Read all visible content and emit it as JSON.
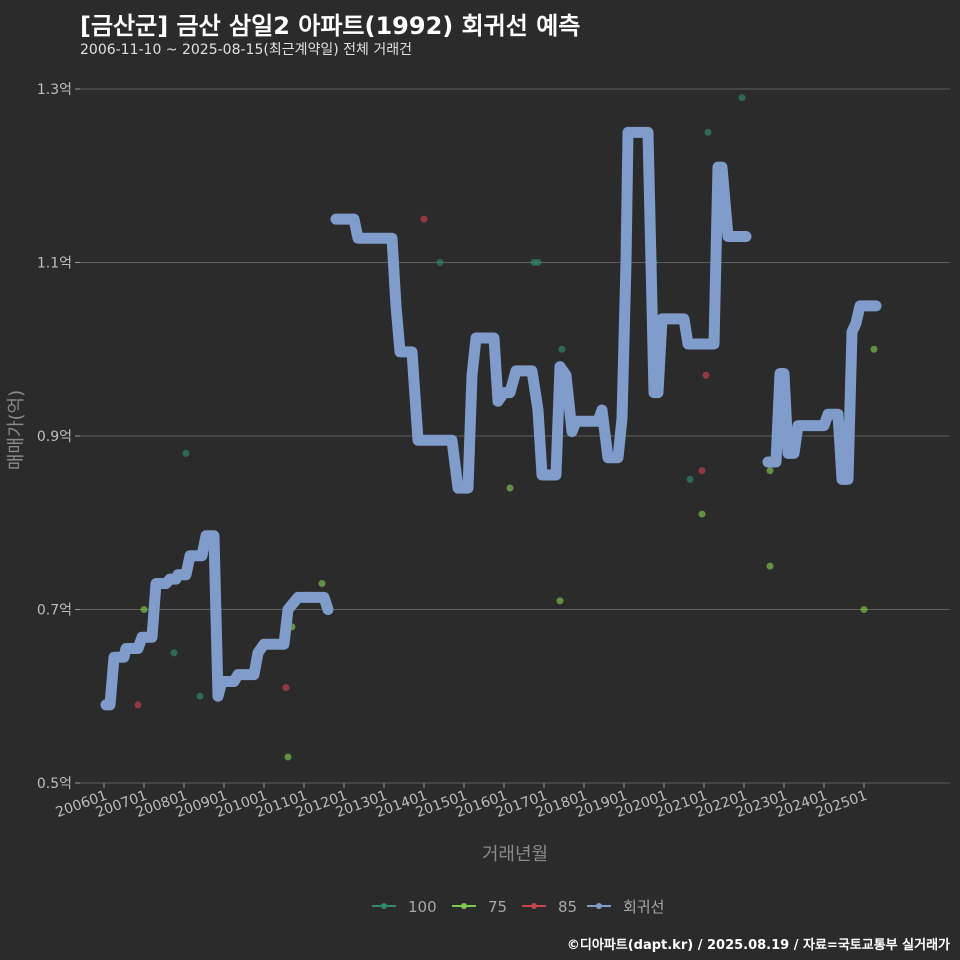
{
  "title": "[금산군] 금산 삼일2 아파트(1992) 회귀선 예측",
  "subtitle": "2006-11-10 ~ 2025-08-15(최근계약일) 전체 거래건",
  "caption": "©디아파트(dapt.kr) / 2025.08.19 / 자료=국토교통부 실거래가",
  "colors": {
    "background": "#2b2b2c",
    "grid": "#5e5e5e",
    "regression": "#7f9ccb",
    "s100": "#2f8a6e",
    "s75": "#7ec850",
    "s85": "#c8434d"
  },
  "chart_data": {
    "type": "scatter",
    "title": "[금산군] 금산 삼일2 아파트(1992) 회귀선 예측",
    "xlabel": "거래년월",
    "ylabel": "매매가(억)",
    "ylim": [
      0.5,
      1.3
    ],
    "xlim": [
      2005.4,
      2027.15
    ],
    "grid": true,
    "legend_position": "bottom",
    "y_ticks": [
      0.5,
      0.7,
      0.9,
      1.1,
      1.3
    ],
    "y_tick_labels": [
      "0.5억",
      "0.7억",
      "0.9억",
      "1.1억",
      "1.3억"
    ],
    "x_ticks": [
      2006,
      2007,
      2008,
      2009,
      2010,
      2011,
      2012,
      2013,
      2014,
      2015,
      2016,
      2017,
      2018,
      2019,
      2020,
      2021,
      2022,
      2023,
      2024,
      2025
    ],
    "x_tick_labels": [
      "200601",
      "200701",
      "200801",
      "200901",
      "201001",
      "201101",
      "201201",
      "201301",
      "201401",
      "201501",
      "201601",
      "201701",
      "201801",
      "201901",
      "202001",
      "202101",
      "202201",
      "202301",
      "202401",
      "202501"
    ],
    "legend": [
      "100",
      "75",
      "85",
      "회귀선"
    ],
    "series": [
      {
        "name": "100",
        "points": [
          [
            2008.05,
            0.88
          ],
          [
            2008.4,
            0.6
          ],
          [
            2007.75,
            0.65
          ],
          [
            2014.4,
            1.1
          ],
          [
            2016.75,
            1.1
          ],
          [
            2016.85,
            1.1
          ],
          [
            2017.45,
            1.0
          ],
          [
            2019.75,
            1.1
          ],
          [
            2021.1,
            1.25
          ],
          [
            2021.95,
            1.29
          ],
          [
            2020.65,
            0.85
          ]
        ]
      },
      {
        "name": "75",
        "points": [
          [
            2007.0,
            0.7
          ],
          [
            2010.6,
            0.53
          ],
          [
            2010.7,
            0.68
          ],
          [
            2011.45,
            0.73
          ],
          [
            2016.15,
            0.84
          ],
          [
            2017.4,
            0.71
          ],
          [
            2020.95,
            0.81
          ],
          [
            2022.65,
            0.86
          ],
          [
            2022.65,
            0.75
          ],
          [
            2024.4,
            0.87
          ],
          [
            2024.65,
            0.98
          ],
          [
            2025.0,
            0.7
          ],
          [
            2025.25,
            1.0
          ]
        ]
      },
      {
        "name": "85",
        "points": [
          [
            2006.85,
            0.59
          ],
          [
            2010.55,
            0.61
          ],
          [
            2014.0,
            1.15
          ],
          [
            2020.95,
            0.86
          ],
          [
            2021.05,
            0.97
          ]
        ]
      }
    ],
    "regression": [
      [
        [
          2006.05,
          0.59
        ],
        [
          2006.15,
          0.59
        ],
        [
          2006.25,
          0.645
        ],
        [
          2006.5,
          0.645
        ],
        [
          2006.55,
          0.655
        ],
        [
          2006.85,
          0.655
        ],
        [
          2006.95,
          0.668
        ],
        [
          2007.2,
          0.668
        ],
        [
          2007.3,
          0.73
        ],
        [
          2007.55,
          0.73
        ],
        [
          2007.65,
          0.735
        ],
        [
          2007.8,
          0.735
        ],
        [
          2007.85,
          0.74
        ],
        [
          2008.05,
          0.74
        ],
        [
          2008.15,
          0.762
        ],
        [
          2008.45,
          0.762
        ],
        [
          2008.55,
          0.785
        ],
        [
          2008.75,
          0.785
        ],
        [
          2008.85,
          0.6
        ],
        [
          2008.95,
          0.617
        ],
        [
          2009.25,
          0.617
        ],
        [
          2009.35,
          0.625
        ],
        [
          2009.75,
          0.625
        ],
        [
          2009.85,
          0.65
        ],
        [
          2010.0,
          0.66
        ],
        [
          2010.5,
          0.66
        ],
        [
          2010.6,
          0.7
        ],
        [
          2010.85,
          0.714
        ],
        [
          2011.5,
          0.714
        ],
        [
          2011.6,
          0.7
        ]
      ],
      [
        [
          2011.8,
          1.15
        ],
        [
          2012.25,
          1.15
        ],
        [
          2012.35,
          1.128
        ],
        [
          2013.2,
          1.128
        ],
        [
          2013.3,
          1.05
        ],
        [
          2013.4,
          0.997
        ],
        [
          2013.7,
          0.997
        ],
        [
          2013.85,
          0.895
        ],
        [
          2014.7,
          0.895
        ],
        [
          2014.85,
          0.84
        ],
        [
          2015.1,
          0.84
        ],
        [
          2015.2,
          0.97
        ],
        [
          2015.3,
          1.013
        ],
        [
          2015.75,
          1.013
        ],
        [
          2015.85,
          0.94
        ],
        [
          2016.0,
          0.95
        ],
        [
          2016.15,
          0.95
        ],
        [
          2016.3,
          0.975
        ],
        [
          2016.7,
          0.975
        ],
        [
          2016.85,
          0.93
        ],
        [
          2016.95,
          0.855
        ],
        [
          2017.3,
          0.855
        ],
        [
          2017.4,
          0.98
        ],
        [
          2017.55,
          0.97
        ],
        [
          2017.7,
          0.905
        ],
        [
          2017.8,
          0.917
        ],
        [
          2018.35,
          0.917
        ],
        [
          2018.45,
          0.93
        ],
        [
          2018.6,
          0.875
        ],
        [
          2018.85,
          0.875
        ],
        [
          2018.95,
          0.92
        ],
        [
          2019.05,
          1.1
        ],
        [
          2019.1,
          1.25
        ],
        [
          2019.6,
          1.25
        ],
        [
          2019.75,
          0.95
        ],
        [
          2019.85,
          0.95
        ],
        [
          2019.95,
          1.035
        ],
        [
          2020.5,
          1.035
        ],
        [
          2020.6,
          1.006
        ],
        [
          2021.25,
          1.006
        ],
        [
          2021.35,
          1.21
        ],
        [
          2021.45,
          1.21
        ],
        [
          2021.6,
          1.13
        ],
        [
          2022.05,
          1.13
        ]
      ],
      [
        [
          2022.6,
          0.87
        ],
        [
          2022.8,
          0.87
        ],
        [
          2022.9,
          0.972
        ],
        [
          2023.0,
          0.972
        ],
        [
          2023.1,
          0.88
        ],
        [
          2023.25,
          0.88
        ],
        [
          2023.35,
          0.912
        ],
        [
          2024.0,
          0.912
        ],
        [
          2024.1,
          0.925
        ],
        [
          2024.35,
          0.925
        ],
        [
          2024.45,
          0.85
        ],
        [
          2024.6,
          0.85
        ],
        [
          2024.7,
          1.02
        ],
        [
          2024.8,
          1.03
        ],
        [
          2024.9,
          1.05
        ],
        [
          2025.3,
          1.05
        ]
      ]
    ]
  }
}
